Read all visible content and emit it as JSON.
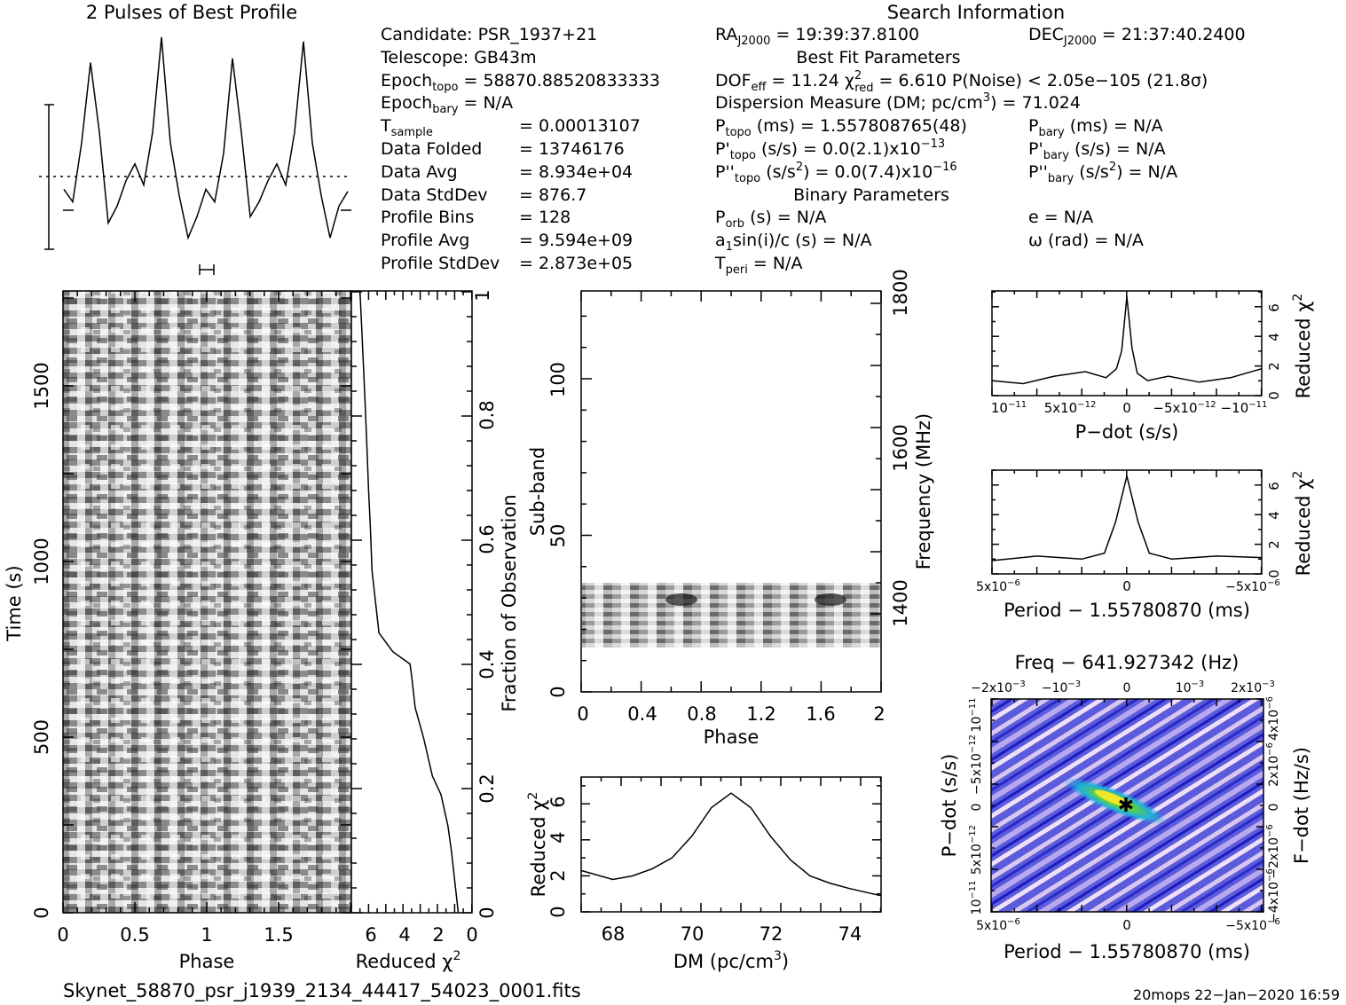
{
  "profile_title": "2 Pulses of Best Profile",
  "search_title": "Search Information",
  "best_fit_title": "Best Fit Parameters",
  "binary_title": "Binary Parameters",
  "candidate": {
    "candidate": "Candidate:  PSR_1937+21",
    "telescope": "Telescope:  GB43m",
    "epoch_topo_label": "Epoch",
    "epoch_topo_sub": "topo",
    "epoch_topo_val": " = 58870.88520833333",
    "epoch_bary_label": "Epoch",
    "epoch_bary_sub": "bary",
    "epoch_bary_val": " = N/A",
    "tsample_label": "T",
    "tsample_sub": "sample",
    "tsample_val": "=   0.00013107",
    "folded_label": "Data Folded",
    "folded_val": "=   13746176",
    "avg_label": "Data Avg",
    "avg_val": "=   8.934e+04",
    "std_label": "Data StdDev",
    "std_val": "=   876.7",
    "bins_label": "Profile Bins",
    "bins_val": "=   128",
    "pavg_label": "Profile Avg",
    "pavg_val": "=   9.594e+09",
    "pstd_label": "Profile StdDev",
    "pstd_val": "=   2.873e+05"
  },
  "search": {
    "ra_label": "RA",
    "ra_sub": "J2000",
    "ra_val": " = 19:39:37.8100",
    "dec_label": "DEC",
    "dec_sub": "J2000",
    "dec_val": " = 21:37:40.2400",
    "dof_label": "DOF",
    "dof_sub": "eff",
    "dof_val": " = 11.24  χ",
    "chi_sup": "2",
    "chi_sub": "red",
    "chi_val": " = 6.610  P(Noise) < 2.05e−105  (21.8σ)",
    "dm_text": "Dispersion Measure (DM; pc/cm",
    "dm_sup": "3",
    "dm_val": ") = 71.024",
    "ptopo_label": "P",
    "ptopo_sub": "topo",
    "ptopo_val": " (ms) =  1.557808765(48)",
    "pbary_label": "P",
    "pbary_sub": "bary",
    "pbary_val": " (ms) = N/A",
    "pdtopo_label": "P'",
    "pdtopo_sub": "topo",
    "pdtopo_val": " (s/s) = 0.0(2.1)x10",
    "pdtopo_exp": "−13",
    "pdbary_label": "P'",
    "pdbary_sub": "bary",
    "pdbary_val": " (s/s) = N/A",
    "pddtopo_label": "P''",
    "pddtopo_sub": "topo",
    "pddtopo_val": " (s/s",
    "pddtopo_sup": "2",
    "pddtopo_val2": ") = 0.0(7.4)x10",
    "pddtopo_exp": "−16",
    "pddbary_label": "P''",
    "pddbary_sub": "bary",
    "pddbary_val": " (s/s",
    "pddbary_sup": "2",
    "pddbary_val2": ") = N/A",
    "porb_label": "P",
    "porb_sub": "orb",
    "porb_val": " (s) = N/A",
    "e_text": "e = N/A",
    "a1_label": "a",
    "a1_sub": "1",
    "a1_val": "sin(i)/c (s) = N/A",
    "omega_text": "ω (rad) = N/A",
    "tperi_label": "T",
    "tperi_sub": "peri",
    "tperi_val": " = N/A"
  },
  "footer": {
    "filename": "Skynet_58870_psr_j1939_2134_44417_54023_0001.fits",
    "stamp": "20mops 22−Jan−2020 16:59"
  },
  "colors": {
    "axis": "#000000",
    "cube_bg": "#3a3ad8",
    "cube_peak": "#e8e020"
  },
  "chart_data": [
    {
      "type": "line",
      "name": "profile",
      "title": "2 Pulses of Best Profile",
      "x": [
        0,
        0.0625,
        0.125,
        0.1875,
        0.25,
        0.3125,
        0.375,
        0.4375,
        0.5,
        0.5625,
        0.625,
        0.6875,
        0.75,
        0.8125,
        0.875,
        0.9375,
        1.0,
        1.0625,
        1.125,
        1.1875,
        1.25,
        1.3125,
        1.375,
        1.4375,
        1.5,
        1.5625,
        1.625,
        1.6875,
        1.75,
        1.8125,
        1.875,
        1.9375,
        2.0
      ],
      "y": [
        0.28,
        0.22,
        0.5,
        0.88,
        0.55,
        0.12,
        0.2,
        0.32,
        0.4,
        0.3,
        0.55,
        1.0,
        0.5,
        0.25,
        0.05,
        0.15,
        0.28,
        0.22,
        0.45,
        0.9,
        0.55,
        0.15,
        0.22,
        0.32,
        0.4,
        0.3,
        0.55,
        0.98,
        0.5,
        0.25,
        0.05,
        0.2,
        0.27
      ],
      "xlim": [
        0,
        2
      ]
    },
    {
      "type": "heatmap",
      "name": "time-phase",
      "xlabel": "Phase",
      "ylabel": "Time (s)",
      "xticks": [
        "0",
        "0.5",
        "1",
        "1.5"
      ],
      "yticks": [
        "0",
        "500",
        "1000",
        "1500"
      ],
      "xlim": [
        0,
        2
      ],
      "ylim": [
        0,
        1770
      ]
    },
    {
      "type": "line",
      "name": "reduced-chi2-vs-time",
      "xlabel": "Reduced χ",
      "xlabel_sup": "2",
      "ylabel": "Fraction of Observation",
      "xticks": [
        "6",
        "4",
        "2",
        "0"
      ],
      "yticks": [
        "0",
        "0.2",
        "0.4",
        "0.6",
        "0.8",
        "1"
      ],
      "chi2": [
        0.8,
        1.0,
        1.2,
        1.4,
        1.8,
        2.3,
        2.8,
        3.3,
        3.5,
        3.6,
        4.6,
        5.4,
        5.6,
        5.8,
        5.9,
        6.0,
        6.1,
        6.2,
        6.3,
        6.4,
        6.5
      ],
      "fraction": [
        0,
        0.05,
        0.1,
        0.14,
        0.19,
        0.22,
        0.28,
        0.33,
        0.38,
        0.4,
        0.42,
        0.45,
        0.5,
        0.55,
        0.62,
        0.68,
        0.75,
        0.82,
        0.88,
        0.94,
        1.0
      ],
      "xlim": [
        7,
        0
      ],
      "ylim": [
        0,
        1
      ]
    },
    {
      "type": "heatmap",
      "name": "subband-phase",
      "xlabel": "Phase",
      "ylabel": "Sub-band",
      "y2label": "Frequency (MHz)",
      "xticks": [
        "0",
        "0.4",
        "0.8",
        "1.2",
        "1.6",
        "2"
      ],
      "yticks": [
        "0",
        "50",
        "100"
      ],
      "y2ticks": [
        "1400",
        "1600",
        "1800"
      ],
      "xlim": [
        0,
        2
      ],
      "ylim": [
        0,
        128
      ],
      "y2lim": [
        1322,
        1800
      ],
      "data_subband_range": [
        15,
        35
      ]
    },
    {
      "type": "line",
      "name": "dm-curve",
      "xlabel": "DM (pc/cm",
      "xlabel_sup": "3",
      "xlabel_end": ")",
      "ylabel": "Reduced χ",
      "ylabel_sup": "2",
      "xticks": [
        "68",
        "70",
        "72",
        "74"
      ],
      "yticks": [
        "0",
        "2",
        "4",
        "6"
      ],
      "x": [
        67.2,
        68.0,
        68.5,
        69.0,
        69.5,
        70.0,
        70.5,
        71.0,
        71.5,
        72.0,
        72.5,
        73.0,
        73.5,
        74.0,
        74.8
      ],
      "y": [
        2.3,
        1.8,
        2.0,
        2.4,
        3.0,
        4.2,
        5.8,
        6.6,
        5.8,
        4.2,
        2.9,
        2.0,
        1.6,
        1.3,
        0.9
      ],
      "xlim": [
        67.2,
        74.8
      ],
      "ylim": [
        0,
        7.5
      ]
    },
    {
      "type": "line",
      "name": "pdot-curve",
      "xlabel": "P−dot (s/s)",
      "ylabel": "Reduced χ",
      "ylabel_sup": "2",
      "xticks": [
        "10",
        "5x10",
        "0",
        "−5x10",
        "−10"
      ],
      "xtick_exps": [
        "−11",
        "−12",
        "",
        "−12",
        "−11"
      ],
      "yticks": [
        "0",
        "2",
        "4",
        "6"
      ],
      "x": [
        1.3e-11,
        1e-11,
        7e-12,
        4e-12,
        2e-12,
        1e-12,
        5e-13,
        0,
        -5e-13,
        -1e-12,
        -2e-12,
        -4e-12,
        -7e-12,
        -1e-11,
        -1.3e-11
      ],
      "y": [
        1.0,
        0.8,
        1.3,
        1.6,
        1.2,
        1.8,
        3.0,
        6.6,
        3.2,
        1.5,
        1.0,
        1.3,
        0.9,
        1.2,
        1.8
      ],
      "xlim": [
        1.3e-11,
        -1.3e-11
      ],
      "ylim": [
        0,
        7
      ]
    },
    {
      "type": "line",
      "name": "period-curve",
      "xlabel": "Period − 1.55780870 (ms)",
      "ylabel": "Reduced χ",
      "ylabel_sup": "2",
      "xticks": [
        "5x10",
        "0",
        "−5x10"
      ],
      "xtick_exps": [
        "−6",
        "",
        "−6"
      ],
      "yticks": [
        "0",
        "2",
        "4",
        "6"
      ],
      "x": [
        6e-06,
        4e-06,
        2e-06,
        1e-06,
        5e-07,
        0,
        -5e-07,
        -1e-06,
        -2e-06,
        -4e-06,
        -6e-06
      ],
      "y": [
        0.9,
        1.2,
        1.0,
        1.4,
        3.5,
        6.6,
        3.5,
        1.4,
        1.0,
        1.2,
        1.1
      ],
      "xlim": [
        6e-06,
        -6e-06
      ],
      "ylim": [
        0,
        7
      ]
    },
    {
      "type": "heatmap",
      "name": "p-pdot-plane",
      "title": "Freq − 641.927342 (Hz)",
      "xlabel": "Period − 1.55780870 (ms)",
      "ylabel": "P−dot (s/s)",
      "y2label": "F−dot (Hz/s)",
      "xticks": [
        "5x10",
        "0",
        "−5x10"
      ],
      "xtick_exps": [
        "−6",
        "",
        "−6"
      ],
      "x2ticks": [
        "−2x10",
        "−10",
        "0",
        "10",
        "2x10"
      ],
      "x2tick_exps": [
        "−3",
        "−3",
        "",
        "−3",
        "−3"
      ],
      "yticks": [
        "10",
        "5x10",
        "0",
        "−5x10",
        "10"
      ],
      "ytick_exps": [
        "−11",
        "−12",
        "",
        "−12",
        "−11"
      ],
      "y2ticks": [
        "−4x10",
        "−2x10",
        "0",
        "2x10",
        "4x10"
      ],
      "y2tick_exps": [
        "−6",
        "−6",
        "",
        "−6",
        "−6"
      ]
    }
  ]
}
